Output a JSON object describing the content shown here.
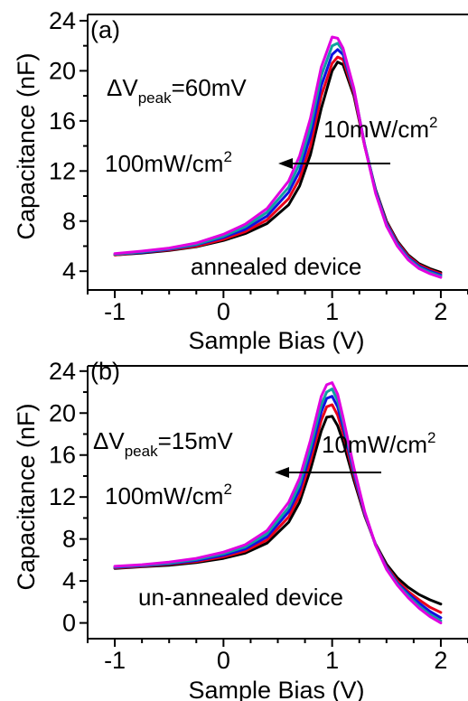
{
  "colors": {
    "series": [
      "#000000",
      "#e8001a",
      "#1010e0",
      "#10a0a0",
      "#e000e0"
    ],
    "axis": "#000000",
    "arrow": "#000000"
  },
  "chart_data": [
    {
      "panel": "(a)",
      "type": "line",
      "xlabel": "Sample Bias (V)",
      "ylabel": "Capacitance (nF)",
      "xlim": [
        -1.25,
        2.25
      ],
      "ylim": [
        2.5,
        24.5
      ],
      "xticks": [
        "-1",
        "0",
        "1",
        "2"
      ],
      "yticks": [
        "4",
        "8",
        "12",
        "16",
        "20",
        "24"
      ],
      "grid": false,
      "annotations": {
        "delta": "ΔV",
        "delta_sub": "peak",
        "delta_value": "=60mV",
        "low_intensity": "10mW/cm",
        "low_sup": "2",
        "high_intensity": "100mW/cm",
        "high_sup": "2",
        "device": "annealed device"
      },
      "x": [
        -1.0,
        -0.75,
        -0.5,
        -0.25,
        0.0,
        0.2,
        0.4,
        0.6,
        0.7,
        0.8,
        0.9,
        1.0,
        1.05,
        1.1,
        1.2,
        1.3,
        1.4,
        1.5,
        1.6,
        1.7,
        1.8,
        1.9,
        2.0
      ],
      "series": [
        {
          "values": [
            5.3,
            5.45,
            5.65,
            5.95,
            6.45,
            7.0,
            7.8,
            9.3,
            10.8,
            13.3,
            17.0,
            20.0,
            20.7,
            20.5,
            18.0,
            14.0,
            10.5,
            8.0,
            6.4,
            5.3,
            4.6,
            4.2,
            3.9
          ]
        },
        {
          "values": [
            5.3,
            5.5,
            5.7,
            6.0,
            6.55,
            7.15,
            8.1,
            9.8,
            11.4,
            14.0,
            18.0,
            20.6,
            21.1,
            20.9,
            18.2,
            14.0,
            10.4,
            7.9,
            6.3,
            5.2,
            4.5,
            4.1,
            3.8
          ]
        },
        {
          "values": [
            5.35,
            5.5,
            5.75,
            6.1,
            6.7,
            7.35,
            8.4,
            10.3,
            12.0,
            14.8,
            18.8,
            21.3,
            21.7,
            21.3,
            18.4,
            14.1,
            10.4,
            7.8,
            6.2,
            5.1,
            4.4,
            4.0,
            3.7
          ]
        },
        {
          "values": [
            5.35,
            5.55,
            5.8,
            6.15,
            6.8,
            7.55,
            8.7,
            10.7,
            12.6,
            15.5,
            19.6,
            22.0,
            22.2,
            21.6,
            18.5,
            14.1,
            10.3,
            7.7,
            6.1,
            5.0,
            4.3,
            3.9,
            3.6
          ]
        },
        {
          "values": [
            5.4,
            5.6,
            5.85,
            6.25,
            6.95,
            7.75,
            9.0,
            11.2,
            13.2,
            16.2,
            20.3,
            22.7,
            22.6,
            21.8,
            18.6,
            14.0,
            10.2,
            7.6,
            6.0,
            4.9,
            4.2,
            3.8,
            3.5
          ]
        }
      ]
    },
    {
      "panel": "(b)",
      "type": "line",
      "xlabel": "Sample Bias (V)",
      "ylabel": "Capacitance (nF)",
      "xlim": [
        -1.25,
        2.25
      ],
      "ylim": [
        -1.5,
        24.5
      ],
      "xticks": [
        "-1",
        "0",
        "1",
        "2"
      ],
      "yticks": [
        "0",
        "4",
        "8",
        "12",
        "16",
        "20",
        "24"
      ],
      "grid": false,
      "annotations": {
        "delta": "ΔV",
        "delta_sub": "peak",
        "delta_value": "=15mV",
        "low_intensity": "10mW/cm",
        "low_sup": "2",
        "high_intensity": "100mW/cm",
        "high_sup": "2",
        "device": "un-annealed device"
      },
      "x": [
        -1.0,
        -0.75,
        -0.5,
        -0.25,
        0.0,
        0.2,
        0.4,
        0.6,
        0.7,
        0.8,
        0.9,
        0.95,
        1.0,
        1.05,
        1.1,
        1.2,
        1.3,
        1.4,
        1.5,
        1.6,
        1.7,
        1.8,
        1.9,
        2.0
      ],
      "series": [
        {
          "values": [
            5.2,
            5.35,
            5.5,
            5.75,
            6.15,
            6.65,
            7.6,
            9.6,
            11.5,
            14.6,
            18.3,
            19.6,
            19.7,
            18.8,
            17.3,
            13.6,
            10.2,
            7.5,
            5.6,
            4.3,
            3.4,
            2.7,
            2.2,
            1.8
          ]
        },
        {
          "values": [
            5.25,
            5.4,
            5.6,
            5.85,
            6.3,
            6.85,
            7.9,
            10.1,
            12.1,
            15.4,
            19.3,
            20.6,
            20.8,
            19.8,
            18.1,
            14.0,
            10.3,
            7.4,
            5.4,
            4.0,
            3.0,
            2.2,
            1.5,
            1.0
          ]
        },
        {
          "values": [
            5.3,
            5.45,
            5.65,
            5.95,
            6.45,
            7.05,
            8.2,
            10.6,
            12.7,
            16.1,
            20.1,
            21.4,
            21.6,
            20.6,
            18.7,
            14.3,
            10.4,
            7.4,
            5.3,
            3.8,
            2.8,
            1.9,
            1.1,
            0.5
          ]
        },
        {
          "values": [
            5.35,
            5.5,
            5.7,
            6.05,
            6.6,
            7.25,
            8.5,
            11.0,
            13.2,
            16.7,
            20.8,
            22.0,
            22.3,
            21.2,
            19.2,
            14.6,
            10.5,
            7.4,
            5.2,
            3.7,
            2.6,
            1.6,
            0.8,
            0.2
          ]
        },
        {
          "values": [
            5.4,
            5.55,
            5.8,
            6.15,
            6.75,
            7.45,
            8.8,
            11.5,
            13.8,
            17.4,
            21.6,
            22.7,
            22.9,
            21.8,
            19.6,
            14.8,
            10.6,
            7.4,
            5.1,
            3.6,
            2.4,
            1.4,
            0.6,
            0.0
          ]
        }
      ]
    }
  ]
}
